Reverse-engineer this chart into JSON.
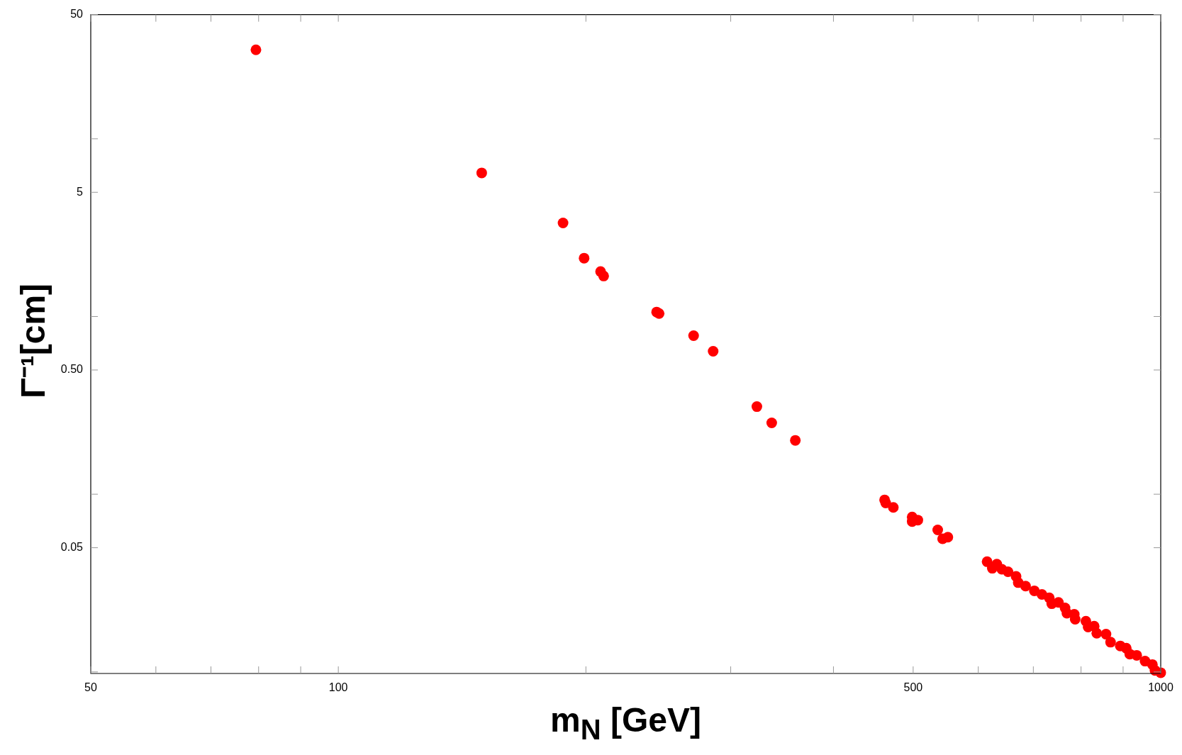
{
  "chart_data": {
    "type": "scatter",
    "xlabel": "m$_{N}$ [GeV]",
    "ylabel": "Γ⁻¹[cm]",
    "log": "xy",
    "grid": false,
    "legend": false,
    "marker": "circle",
    "xlim": [
      50,
      1000
    ],
    "ylim": [
      0.0098,
      50
    ],
    "xticks": [
      50,
      {
        "value": 60,
        "label": null
      },
      {
        "value": 70,
        "label": null
      },
      {
        "value": 80,
        "label": null
      },
      {
        "value": 90,
        "label": null
      },
      100,
      {
        "value": 200,
        "label": null
      },
      {
        "value": 300,
        "label": null
      },
      {
        "value": 400,
        "label": null
      },
      500,
      {
        "value": 600,
        "label": null
      },
      {
        "value": 700,
        "label": null
      },
      {
        "value": 800,
        "label": null
      },
      {
        "value": 900,
        "label": null
      },
      1000
    ],
    "yticks": [
      {
        "value": 0.01,
        "label": null
      },
      0.05,
      {
        "value": 0.1,
        "label": null
      },
      {
        "value": 0.5,
        "label": "0.50"
      },
      {
        "value": 1,
        "label": null
      },
      5,
      {
        "value": 10,
        "label": null
      },
      50
    ],
    "series": [
      {
        "color": "#ff0000",
        "x": [
          79.4,
          149.4,
          187.6,
          199,
          208.4,
          210.2,
          243.8,
          245.5,
          270.4,
          285.6,
          322.8,
          336.5,
          359.5,
          461.6,
          463,
          473,
          498.6,
          498.6,
          506.6,
          535.6,
          543,
          551,
          615,
          624,
          632,
          641,
          652,
          667,
          671,
          685,
          702,
          717,
          732,
          737,
          751,
          765,
          769,
          785,
          787,
          811,
          816,
          830,
          836,
          858,
          869,
          893,
          908,
          917,
          935,
          957,
          977,
          984,
          1000
        ],
        "values": [
          31.7,
          6.43,
          3.36,
          2.13,
          1.79,
          1.69,
          1.06,
          1.04,
          0.78,
          0.637,
          0.311,
          0.252,
          0.201,
          0.0929,
          0.0893,
          0.0843,
          0.0744,
          0.0702,
          0.0715,
          0.063,
          0.0561,
          0.0573,
          0.0417,
          0.0383,
          0.0404,
          0.0378,
          0.0366,
          0.0345,
          0.0318,
          0.0304,
          0.0286,
          0.0273,
          0.0261,
          0.0242,
          0.0246,
          0.0229,
          0.0214,
          0.0211,
          0.0198,
          0.0193,
          0.0179,
          0.0181,
          0.0165,
          0.0163,
          0.0147,
          0.014,
          0.0136,
          0.0126,
          0.0124,
          0.0115,
          0.011,
          0.0102,
          0.0099
        ]
      }
    ]
  }
}
